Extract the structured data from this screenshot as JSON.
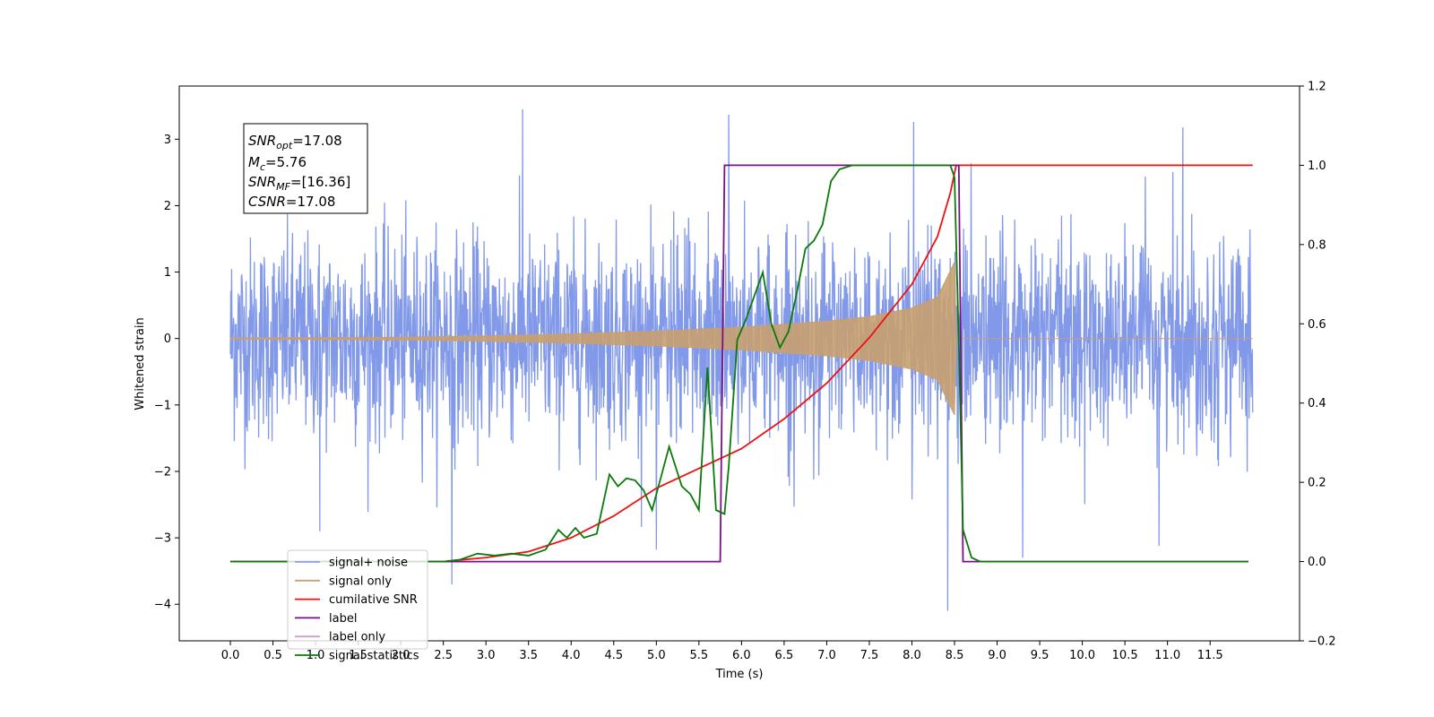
{
  "chart_data": {
    "type": "line",
    "xlabel": "Time (s)",
    "ylabel_left": "Whitened strain",
    "ylabel_right": "",
    "xlim": [
      -0.6,
      12.55
    ],
    "ylim_left": [
      -4.55,
      3.8
    ],
    "ylim_right": [
      -0.2,
      1.2
    ],
    "x_ticks": [
      0.0,
      0.5,
      1.0,
      1.5,
      2.0,
      2.5,
      3.0,
      3.5,
      4.0,
      4.5,
      5.0,
      5.5,
      6.0,
      6.5,
      7.0,
      7.5,
      8.0,
      8.5,
      9.0,
      9.5,
      10.0,
      10.5,
      11.0,
      11.5
    ],
    "x_tick_labels": [
      "0.0",
      "0.5",
      "1.0",
      "1.5",
      "2.0",
      "2.5",
      "3.0",
      "3.5",
      "4.0",
      "4.5",
      "5.0",
      "5.5",
      "6.0",
      "6.5",
      "7.0",
      "7.5",
      "8.0",
      "8.5",
      "9.0",
      "9.5",
      "10.0",
      "10.5",
      "11.0",
      "11.5"
    ],
    "y_left_ticks": [
      3,
      2,
      1,
      0,
      -1,
      -2,
      -3,
      -4
    ],
    "y_left_tick_labels": [
      "3",
      "2",
      "1",
      "0",
      "−1",
      "−2",
      "−3",
      "−4"
    ],
    "y_right_ticks": [
      1.2,
      1.0,
      0.8,
      0.6,
      0.4,
      0.2,
      0.0,
      -0.2
    ],
    "y_right_tick_labels": [
      "1.2",
      "1.0",
      "0.8",
      "0.6",
      "0.4",
      "0.2",
      "0.0",
      "−0.2"
    ],
    "grid": false,
    "legend_placement": "lower-left",
    "annotation": {
      "snr_opt": {
        "label": "SNR",
        "sub": "opt",
        "value": "=17.08"
      },
      "mc": {
        "label": "M",
        "sub": "c",
        "value": "=5.76"
      },
      "snr_mf": {
        "label": "SNR",
        "sub": "MF",
        "value": "=[16.36]"
      },
      "csnr": {
        "label": "CSNR",
        "sub": "",
        "value": "=17.08"
      }
    },
    "series": [
      {
        "name": "signal+ noise",
        "axis": "left",
        "color": "#7b94e8",
        "kind": "noise",
        "x_range": [
          0.0,
          12.0
        ],
        "sigma": 0.75,
        "spikes": [
          {
            "x": 3.43,
            "y": 3.45
          },
          {
            "x": 5.85,
            "y": 3.37
          },
          {
            "x": 8.02,
            "y": 3.26
          },
          {
            "x": 11.18,
            "y": 3.18
          },
          {
            "x": 1.05,
            "y": -2.9
          },
          {
            "x": 2.6,
            "y": -3.7
          },
          {
            "x": 5.0,
            "y": -3.18
          },
          {
            "x": 8.42,
            "y": -4.1
          },
          {
            "x": 9.3,
            "y": -3.3
          },
          {
            "x": 10.9,
            "y": -3.12
          }
        ]
      },
      {
        "name": "signal only",
        "axis": "left",
        "color": "#c8a070",
        "kind": "chirp_envelope",
        "points": [
          [
            0.0,
            0.01
          ],
          [
            2.0,
            0.02
          ],
          [
            3.0,
            0.04
          ],
          [
            4.0,
            0.07
          ],
          [
            5.0,
            0.11
          ],
          [
            6.0,
            0.17
          ],
          [
            7.0,
            0.26
          ],
          [
            7.5,
            0.33
          ],
          [
            8.0,
            0.46
          ],
          [
            8.3,
            0.62
          ],
          [
            8.5,
            1.15
          ],
          [
            8.52,
            0.0
          ],
          [
            12.0,
            0.0
          ]
        ]
      },
      {
        "name": "cumilative SNR",
        "axis": "right",
        "color": "#ee1111",
        "points": [
          [
            0.0,
            0.0
          ],
          [
            2.5,
            0.0
          ],
          [
            3.0,
            0.01
          ],
          [
            3.5,
            0.025
          ],
          [
            4.0,
            0.06
          ],
          [
            4.5,
            0.115
          ],
          [
            5.0,
            0.185
          ],
          [
            5.5,
            0.235
          ],
          [
            6.0,
            0.285
          ],
          [
            6.5,
            0.36
          ],
          [
            7.0,
            0.45
          ],
          [
            7.5,
            0.565
          ],
          [
            8.0,
            0.7
          ],
          [
            8.3,
            0.82
          ],
          [
            8.45,
            0.93
          ],
          [
            8.52,
            1.0
          ],
          [
            12.0,
            1.0
          ]
        ]
      },
      {
        "name": "label",
        "axis": "right",
        "color": "#7a0f87",
        "points": [
          [
            0.0,
            0.0
          ],
          [
            5.75,
            0.0
          ],
          [
            5.8,
            1.0
          ],
          [
            8.55,
            1.0
          ],
          [
            8.6,
            0.0
          ],
          [
            11.95,
            0.0
          ]
        ]
      },
      {
        "name": "label only",
        "axis": "right",
        "color": "#c8a0c8",
        "points": []
      },
      {
        "name": "signal statistics",
        "axis": "right",
        "color": "#0a7a0a",
        "points": [
          [
            0.0,
            0.0
          ],
          [
            2.5,
            0.0
          ],
          [
            2.7,
            0.005
          ],
          [
            2.9,
            0.02
          ],
          [
            3.1,
            0.015
          ],
          [
            3.3,
            0.02
          ],
          [
            3.5,
            0.015
          ],
          [
            3.7,
            0.03
          ],
          [
            3.85,
            0.08
          ],
          [
            3.95,
            0.06
          ],
          [
            4.05,
            0.085
          ],
          [
            4.15,
            0.06
          ],
          [
            4.3,
            0.07
          ],
          [
            4.45,
            0.22
          ],
          [
            4.55,
            0.19
          ],
          [
            4.65,
            0.21
          ],
          [
            4.75,
            0.205
          ],
          [
            4.85,
            0.18
          ],
          [
            4.95,
            0.13
          ],
          [
            5.05,
            0.21
          ],
          [
            5.15,
            0.29
          ],
          [
            5.3,
            0.19
          ],
          [
            5.4,
            0.17
          ],
          [
            5.5,
            0.13
          ],
          [
            5.6,
            0.49
          ],
          [
            5.7,
            0.13
          ],
          [
            5.8,
            0.12
          ],
          [
            5.85,
            0.24
          ],
          [
            5.95,
            0.56
          ],
          [
            6.05,
            0.61
          ],
          [
            6.15,
            0.67
          ],
          [
            6.25,
            0.73
          ],
          [
            6.35,
            0.6
          ],
          [
            6.45,
            0.54
          ],
          [
            6.55,
            0.58
          ],
          [
            6.65,
            0.68
          ],
          [
            6.75,
            0.79
          ],
          [
            6.85,
            0.81
          ],
          [
            6.95,
            0.85
          ],
          [
            7.05,
            0.96
          ],
          [
            7.15,
            0.99
          ],
          [
            7.3,
            1.0
          ],
          [
            8.45,
            1.0
          ],
          [
            8.5,
            0.97
          ],
          [
            8.55,
            0.55
          ],
          [
            8.6,
            0.08
          ],
          [
            8.7,
            0.01
          ],
          [
            8.8,
            0.0
          ],
          [
            11.95,
            0.0
          ]
        ]
      }
    ]
  }
}
